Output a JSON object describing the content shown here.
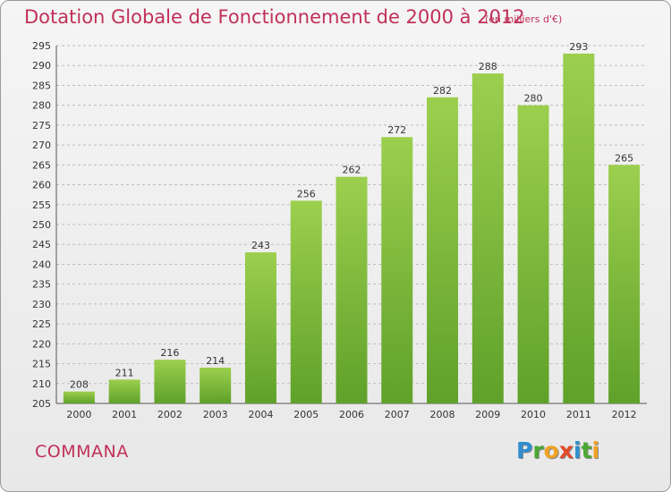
{
  "header": {
    "title": "Dotation Globale de Fonctionnement de 2000 à 2012",
    "unit": "(en milliers d'€)"
  },
  "footer": {
    "commune": "COMMANA",
    "logo": [
      "P",
      "r",
      "o",
      "x",
      "i",
      "t",
      "i"
    ]
  },
  "colors": {
    "title": "#c0305a",
    "bar_top": "#9ccf4e",
    "bar_bottom": "#5fa12a",
    "grid": "#bdbdbd",
    "logo_letters": [
      "#2f8fcf",
      "#4aa832",
      "#f0a323",
      "#e24a2c",
      "#2f8fcf",
      "#4aa832",
      "#f0a323"
    ]
  },
  "chart_data": {
    "type": "bar",
    "title": "Dotation Globale de Fonctionnement de 2000 à 2012",
    "subtitle": "(en milliers d'€)",
    "xlabel": "",
    "ylabel": "",
    "categories": [
      "2000",
      "2001",
      "2002",
      "2003",
      "2004",
      "2005",
      "2006",
      "2007",
      "2008",
      "2009",
      "2010",
      "2011",
      "2012"
    ],
    "values": [
      208,
      211,
      216,
      214,
      243,
      256,
      262,
      272,
      282,
      288,
      280,
      293,
      265
    ],
    "ylim": [
      205,
      295
    ],
    "yticks": [
      205,
      210,
      215,
      220,
      225,
      230,
      235,
      240,
      245,
      250,
      255,
      260,
      265,
      270,
      275,
      280,
      285,
      290,
      295
    ],
    "grid": true,
    "legend": "none"
  }
}
